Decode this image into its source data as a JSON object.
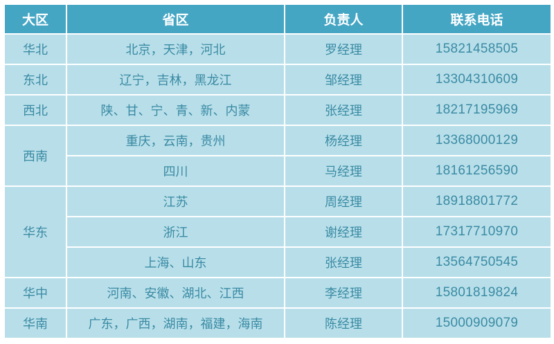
{
  "headers": [
    "大区",
    "省区",
    "负责人",
    "联系电话"
  ],
  "rows": [
    {
      "region": "华北",
      "province": "北京，天津，河北",
      "manager": "罗经理",
      "phone": "15821458505"
    },
    {
      "region": "东北",
      "province": "辽宁，吉林，黑龙江",
      "manager": "邹经理",
      "phone": "13304310609"
    },
    {
      "region": "西北",
      "province": "陕、甘、宁、青、新、内蒙",
      "manager": "张经理",
      "phone": "18217195969"
    },
    {
      "region": "西南",
      "province": "重庆，云南，贵州",
      "manager": "杨经理",
      "phone": "13368000129"
    },
    {
      "region": "",
      "province": "四川",
      "manager": "马经理",
      "phone": "18161256590"
    },
    {
      "region": "华东",
      "province": "江苏",
      "manager": "周经理",
      "phone": "18918801772"
    },
    {
      "region": "",
      "province": "浙江",
      "manager": "谢经理",
      "phone": "17317710970"
    },
    {
      "region": "",
      "province": "上海、山东",
      "manager": "张经理",
      "phone": "13564750545"
    },
    {
      "region": "华中",
      "province": "河南、安徽、湖北、江西",
      "manager": "李经理",
      "phone": "15801819824"
    },
    {
      "region": "华南",
      "province": "广东，广西，湖南，福建，海南",
      "manager": "陈经理",
      "phone": "15000909079"
    }
  ],
  "colors": {
    "header_bg": "#45a6c4",
    "cell_bg": "#b8dfe9",
    "text": "#3a8aa4"
  }
}
